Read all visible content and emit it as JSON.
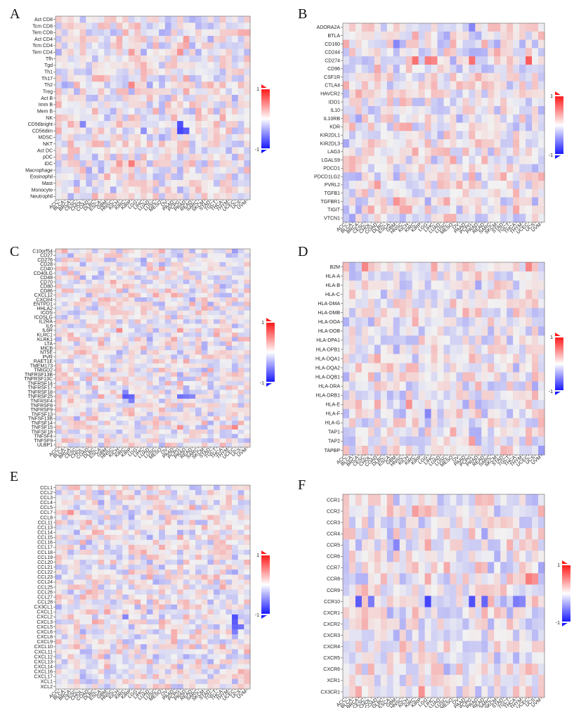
{
  "colors": {
    "negative": "#1a1aff",
    "zero": "#f2f2f2",
    "positive": "#ff1a1a"
  },
  "scale": {
    "min": -1,
    "max": 1,
    "min_label": "-1",
    "max_label": "1"
  },
  "cancer_types": [
    "ACC",
    "BLCA",
    "BRCA",
    "CESC",
    "CHOL",
    "COAD",
    "DLBC",
    "ESCA",
    "GBM",
    "HNSC",
    "KICH",
    "KIRC",
    "KIRP",
    "LGG",
    "LIHC",
    "LUAD",
    "LUSC",
    "MESO",
    "OV",
    "PAAD",
    "PCPG",
    "PRAD",
    "READ",
    "SARC",
    "SKCM",
    "STAD",
    "TGCT",
    "THCA",
    "THYM",
    "UCEC",
    "UCS",
    "UVM"
  ],
  "chart_data": [
    {
      "type": "heatmap",
      "panel": "A",
      "rows": [
        "Act CD8",
        "Tcm CD8",
        "Tem CD8",
        "Act CD4",
        "Tcm CD4",
        "Tem CD4",
        "Tfh",
        "Tgd",
        "Th1",
        "Th17",
        "Th2",
        "Treg",
        "Act B",
        "Imm B",
        "Mem B",
        "NK",
        "CD56bright",
        "CD56dim",
        "MDSC",
        "NKT",
        "Act DC",
        "pDC",
        "iDC",
        "Macrophage",
        "Eosinophil",
        "Mast",
        "Monocyte",
        "Neutrophil"
      ],
      "strong": [
        [
          16,
          20,
          -0.75
        ],
        [
          17,
          20,
          -0.8
        ],
        [
          17,
          21,
          -0.7
        ],
        [
          16,
          4,
          -0.5
        ],
        [
          17,
          14,
          -0.45
        ],
        [
          22,
          12,
          0.55
        ],
        [
          22,
          10,
          0.4
        ],
        [
          10,
          12,
          0.5
        ],
        [
          5,
          12,
          0.4
        ],
        [
          5,
          20,
          0.45
        ],
        [
          3,
          21,
          0.4
        ]
      ]
    },
    {
      "type": "heatmap",
      "panel": "B",
      "rows": [
        "ADORA2A",
        "BTLA",
        "CD160",
        "CD244",
        "CD274",
        "CD96",
        "CSF1R",
        "CTLA4",
        "HAVCR2",
        "IDO1",
        "IL10",
        "IL10RB",
        "KDR",
        "KIR2DL1",
        "KIR2DL3",
        "LAG3",
        "LGALS9",
        "PDCD1",
        "PDCD1LG2",
        "PVRL2",
        "TGFB1",
        "TGFBR1",
        "TIGIT",
        "VTCN1"
      ],
      "strong": [
        [
          4,
          11,
          0.6
        ],
        [
          4,
          13,
          0.55
        ],
        [
          4,
          14,
          0.5
        ],
        [
          4,
          20,
          0.6
        ],
        [
          4,
          29,
          0.7
        ],
        [
          21,
          8,
          0.45
        ],
        [
          21,
          16,
          0.35
        ],
        [
          19,
          5,
          0.4
        ],
        [
          2,
          8,
          -0.5
        ],
        [
          0,
          20,
          -0.5
        ],
        [
          12,
          10,
          0.35
        ]
      ]
    },
    {
      "type": "heatmap",
      "panel": "C",
      "rows": [
        "C10orf54",
        "CD27",
        "CD276",
        "CD28",
        "CD40",
        "CD40LG",
        "CD48",
        "CD70",
        "CD80",
        "CD86",
        "CXCL12",
        "CXCR4",
        "ENTPD1",
        "HHLA2",
        "ICOS",
        "ICOSLG",
        "IL2RA",
        "IL6",
        "IL6R",
        "KLRC1",
        "KLRK1",
        "LTA",
        "MICB",
        "NT5E",
        "PVR",
        "RAET1E",
        "TMEM173",
        "TMIGD2",
        "TNFRSF13B",
        "TNFRSF13C",
        "TNFRSF14",
        "TNFRSF17",
        "TNFRSF18",
        "TNFRSF25",
        "TNFRSF4",
        "TNFRSF8",
        "TNFRSF9",
        "TNFSF13",
        "TNFSF13B",
        "TNFSF14",
        "TNFSF15",
        "TNFSF18",
        "TNFSF4",
        "TNFSF9",
        "ULBP1"
      ],
      "strong": [
        [
          33,
          11,
          -0.7
        ],
        [
          33,
          12,
          -0.65
        ],
        [
          33,
          20,
          -0.6
        ],
        [
          33,
          21,
          -0.55
        ],
        [
          33,
          22,
          -0.5
        ],
        [
          34,
          12,
          -0.55
        ],
        [
          32,
          11,
          -0.5
        ],
        [
          18,
          10,
          0.5
        ],
        [
          18,
          20,
          0.4
        ],
        [
          40,
          20,
          0.45
        ],
        [
          40,
          29,
          0.5
        ],
        [
          0,
          29,
          -0.4
        ]
      ]
    },
    {
      "type": "heatmap",
      "panel": "D",
      "rows": [
        "B2M",
        "HLA-A",
        "HLA-B",
        "HLA-C",
        "HLA-DMA",
        "HLA-DMB",
        "HLA-DOA",
        "HLA-DOB",
        "HLA-DPA1",
        "HLA-DPB1",
        "HLA-DQA1",
        "HLA-DQA2",
        "HLA-DQB1",
        "HLA-DRA",
        "HLA-DRB1",
        "HLA-E",
        "HLA-F",
        "HLA-G",
        "TAP1",
        "TAP2",
        "TAPBP"
      ],
      "strong": [
        [
          0,
          3,
          0.5
        ],
        [
          0,
          29,
          0.5
        ],
        [
          15,
          10,
          0.45
        ],
        [
          16,
          13,
          -0.5
        ],
        [
          19,
          20,
          0.4
        ],
        [
          20,
          31,
          -0.4
        ]
      ]
    },
    {
      "type": "heatmap",
      "panel": "E",
      "rows": [
        "CCL1",
        "CCL2",
        "CCL3",
        "CCL4",
        "CCL5",
        "CCL7",
        "CCL8",
        "CCL11",
        "CCL13",
        "CCL14",
        "CCL15",
        "CCL16",
        "CCL17",
        "CCL18",
        "CCL19",
        "CCL20",
        "CCL21",
        "CCL22",
        "CCL23",
        "CCL24",
        "CCL25",
        "CCL26",
        "CCL27",
        "CCL28",
        "CX3CL1",
        "CXCL1",
        "CXCL2",
        "CXCL3",
        "CXCL5",
        "CXCL6",
        "CXCL8",
        "CXCL9",
        "CXCL10",
        "CXCL11",
        "CXCL12",
        "CXCL13",
        "CXCL14",
        "CXCL16",
        "CXCL17",
        "XCL1",
        "XCL2"
      ],
      "strong": [
        [
          26,
          29,
          -0.75
        ],
        [
          27,
          29,
          -0.7
        ],
        [
          28,
          29,
          -0.65
        ],
        [
          28,
          30,
          -0.6
        ],
        [
          29,
          29,
          -0.55
        ],
        [
          26,
          11,
          -0.5
        ],
        [
          5,
          2,
          0.45
        ],
        [
          4,
          22,
          0.35
        ]
      ]
    },
    {
      "type": "heatmap",
      "panel": "F",
      "rows": [
        "CCR1",
        "CCR2",
        "CCR3",
        "CCR4",
        "CCR5",
        "CCR6",
        "CCR7",
        "CCR8",
        "CCR9",
        "CCR10",
        "CXCR1",
        "CXCR2",
        "CXCR3",
        "CXCR4",
        "CXCR5",
        "CXCR6",
        "XCR1",
        "CX3CR1"
      ],
      "strong": [
        [
          9,
          2,
          -0.7
        ],
        [
          9,
          4,
          -0.55
        ],
        [
          9,
          13,
          -0.8
        ],
        [
          9,
          20,
          -0.75
        ],
        [
          9,
          22,
          -0.65
        ],
        [
          9,
          27,
          -0.55
        ],
        [
          9,
          28,
          -0.5
        ],
        [
          7,
          29,
          0.55
        ],
        [
          7,
          30,
          0.45
        ],
        [
          1,
          11,
          0.4
        ],
        [
          17,
          12,
          0.45
        ],
        [
          4,
          8,
          -0.5
        ],
        [
          10,
          11,
          0.3
        ]
      ]
    }
  ]
}
